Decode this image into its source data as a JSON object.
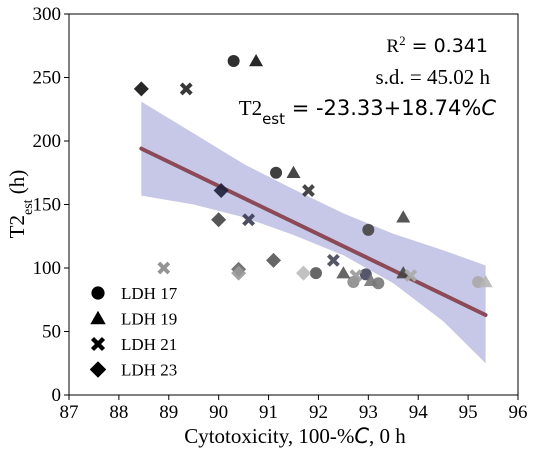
{
  "chart_data": {
    "type": "scatter",
    "xlabel": "Cytotoxicity, 100-%C, 0 h",
    "ylabel": "T2est (h)",
    "xlim": [
      87,
      96
    ],
    "ylim": [
      0,
      300
    ],
    "xticks": [
      87,
      88,
      89,
      90,
      91,
      92,
      93,
      94,
      95,
      96
    ],
    "yticks": [
      0,
      50,
      100,
      150,
      200,
      250,
      300
    ],
    "grid": false,
    "legend_position": "bottom-left",
    "annotations": {
      "r2": "R² = 0.341",
      "sd": "s.d. = 45.02 h",
      "equation": "T2est = -23.33+18.74%C"
    },
    "fit_line": {
      "color": "#8b4a55",
      "x": [
        88.45,
        95.35
      ],
      "y": [
        194,
        63
      ]
    },
    "confidence_band": {
      "color": "#b7b8e0",
      "x": [
        88.45,
        89.5,
        90.5,
        91.5,
        92.5,
        93.5,
        94.5,
        95.35
      ],
      "upper": [
        231,
        206,
        182,
        162,
        143,
        127,
        114,
        102
      ],
      "lower": [
        157,
        150,
        140,
        126,
        110,
        88,
        58,
        25
      ]
    },
    "series": [
      {
        "name": "LDH 17",
        "marker": "circle",
        "points": [
          {
            "x": 90.3,
            "y": 263,
            "color": "#1a1a1a"
          },
          {
            "x": 91.15,
            "y": 175,
            "color": "#2a2a2a"
          },
          {
            "x": 93.0,
            "y": 130,
            "color": "#444444"
          },
          {
            "x": 91.95,
            "y": 96,
            "color": "#555555"
          },
          {
            "x": 92.95,
            "y": 95,
            "color": "#44445a"
          },
          {
            "x": 92.7,
            "y": 89,
            "color": "#8a8a8a"
          },
          {
            "x": 93.2,
            "y": 88,
            "color": "#777777"
          },
          {
            "x": 95.2,
            "y": 89,
            "color": "#a8a8a8"
          }
        ]
      },
      {
        "name": "LDH 19",
        "marker": "triangle",
        "points": [
          {
            "x": 90.75,
            "y": 263,
            "color": "#111111"
          },
          {
            "x": 91.5,
            "y": 175,
            "color": "#333333"
          },
          {
            "x": 93.7,
            "y": 140,
            "color": "#444444"
          },
          {
            "x": 92.5,
            "y": 96,
            "color": "#555555"
          },
          {
            "x": 93.05,
            "y": 90,
            "color": "#777777"
          },
          {
            "x": 93.7,
            "y": 96,
            "color": "#444444"
          },
          {
            "x": 95.35,
            "y": 89,
            "color": "#b5b5b5"
          }
        ]
      },
      {
        "name": "LDH 21",
        "marker": "x",
        "points": [
          {
            "x": 89.35,
            "y": 241,
            "color": "#222222"
          },
          {
            "x": 91.8,
            "y": 161,
            "color": "#333333"
          },
          {
            "x": 90.6,
            "y": 138,
            "color": "#3a3a52"
          },
          {
            "x": 92.3,
            "y": 106,
            "color": "#444455"
          },
          {
            "x": 88.9,
            "y": 100,
            "color": "#888888"
          },
          {
            "x": 92.75,
            "y": 94,
            "color": "#999999"
          },
          {
            "x": 93.85,
            "y": 94,
            "color": "#aaaaaa"
          }
        ]
      },
      {
        "name": "LDH 23",
        "marker": "diamond",
        "points": [
          {
            "x": 88.45,
            "y": 241,
            "color": "#111111"
          },
          {
            "x": 90.05,
            "y": 161,
            "color": "#1e1e3a"
          },
          {
            "x": 90.0,
            "y": 138,
            "color": "#444444"
          },
          {
            "x": 91.1,
            "y": 106,
            "color": "#555555"
          },
          {
            "x": 90.4,
            "y": 99,
            "color": "#666666"
          },
          {
            "x": 90.4,
            "y": 96,
            "color": "#999999"
          },
          {
            "x": 91.7,
            "y": 96,
            "color": "#bbbbbb"
          }
        ]
      }
    ]
  }
}
